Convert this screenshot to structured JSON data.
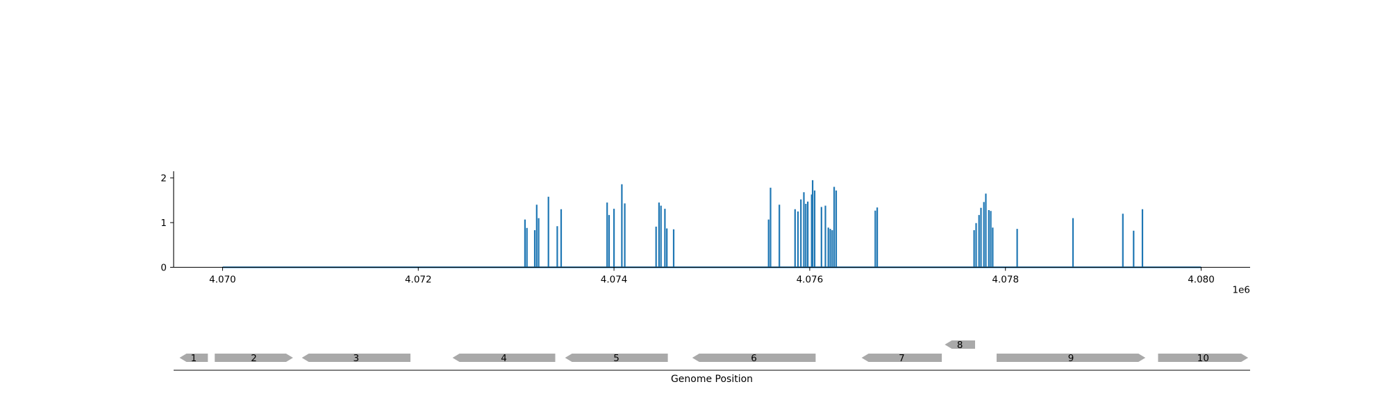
{
  "chart_data": [
    {
      "type": "line",
      "title": "",
      "xlabel": "",
      "ylabel": "",
      "x_offset_label": "1e6",
      "xlim": [
        4069500,
        4080500
      ],
      "ylim": [
        0,
        2.15
      ],
      "xticks": [
        {
          "value": 4070000,
          "label": "4.070"
        },
        {
          "value": 4072000,
          "label": "4.072"
        },
        {
          "value": 4074000,
          "label": "4.074"
        },
        {
          "value": 4076000,
          "label": "4.076"
        },
        {
          "value": 4078000,
          "label": "4.078"
        },
        {
          "value": 4080000,
          "label": "4.080"
        }
      ],
      "yticks": [
        {
          "value": 0,
          "label": "0"
        },
        {
          "value": 1,
          "label": "1"
        },
        {
          "value": 2,
          "label": "2"
        }
      ],
      "grid": false,
      "line_color": "#1f77b4",
      "x_range": [
        4070000,
        4080000
      ],
      "spikes": [
        [
          4073090,
          1.07
        ],
        [
          4073110,
          0.88
        ],
        [
          4073190,
          0.83
        ],
        [
          4073210,
          1.4
        ],
        [
          4073230,
          1.1
        ],
        [
          4073330,
          1.58
        ],
        [
          4073420,
          0.92
        ],
        [
          4073460,
          1.3
        ],
        [
          4073930,
          1.45
        ],
        [
          4073950,
          1.17
        ],
        [
          4074000,
          1.31
        ],
        [
          4074080,
          1.86
        ],
        [
          4074110,
          1.43
        ],
        [
          4074430,
          0.91
        ],
        [
          4074460,
          1.45
        ],
        [
          4074480,
          1.38
        ],
        [
          4074520,
          1.31
        ],
        [
          4074540,
          0.87
        ],
        [
          4074610,
          0.85
        ],
        [
          4075580,
          1.07
        ],
        [
          4075600,
          1.78
        ],
        [
          4075690,
          1.4
        ],
        [
          4075850,
          1.3
        ],
        [
          4075880,
          1.25
        ],
        [
          4075910,
          1.52
        ],
        [
          4075940,
          1.68
        ],
        [
          4075960,
          1.42
        ],
        [
          4075980,
          1.47
        ],
        [
          4076020,
          1.63
        ],
        [
          4076030,
          1.95
        ],
        [
          4076050,
          1.72
        ],
        [
          4076120,
          1.35
        ],
        [
          4076160,
          1.38
        ],
        [
          4076190,
          0.89
        ],
        [
          4076210,
          0.86
        ],
        [
          4076230,
          0.83
        ],
        [
          4076250,
          1.8
        ],
        [
          4076270,
          1.72
        ],
        [
          4076670,
          1.27
        ],
        [
          4076690,
          1.34
        ],
        [
          4077680,
          0.83
        ],
        [
          4077700,
          0.99
        ],
        [
          4077730,
          1.17
        ],
        [
          4077750,
          1.33
        ],
        [
          4077780,
          1.46
        ],
        [
          4077800,
          1.65
        ],
        [
          4077830,
          1.28
        ],
        [
          4077850,
          1.26
        ],
        [
          4077870,
          0.89
        ],
        [
          4078120,
          0.86
        ],
        [
          4078690,
          1.1
        ],
        [
          4079200,
          1.2
        ],
        [
          4079310,
          0.82
        ],
        [
          4079400,
          1.3
        ]
      ]
    },
    {
      "type": "gene-track",
      "xlabel": "Genome Position",
      "gene_color": "#a9a9a9",
      "genes": [
        {
          "label": "1",
          "start": 4069560,
          "end": 4069850,
          "strand": "-",
          "row": 0
        },
        {
          "label": "2",
          "start": 4069920,
          "end": 4070720,
          "strand": "+",
          "row": 0
        },
        {
          "label": "3",
          "start": 4070810,
          "end": 4071920,
          "strand": "-",
          "row": 0
        },
        {
          "label": "4",
          "start": 4072350,
          "end": 4073400,
          "strand": "-",
          "row": 0
        },
        {
          "label": "5",
          "start": 4073500,
          "end": 4074550,
          "strand": "-",
          "row": 0
        },
        {
          "label": "6",
          "start": 4074800,
          "end": 4076060,
          "strand": "-",
          "row": 0
        },
        {
          "label": "7",
          "start": 4076530,
          "end": 4077350,
          "strand": "-",
          "row": 0
        },
        {
          "label": "8",
          "start": 4077380,
          "end": 4077690,
          "strand": "-",
          "row": 1
        },
        {
          "label": "9",
          "start": 4077910,
          "end": 4079430,
          "strand": "+",
          "row": 0
        },
        {
          "label": "10",
          "start": 4079560,
          "end": 4080480,
          "strand": "+",
          "row": 0
        }
      ]
    }
  ]
}
